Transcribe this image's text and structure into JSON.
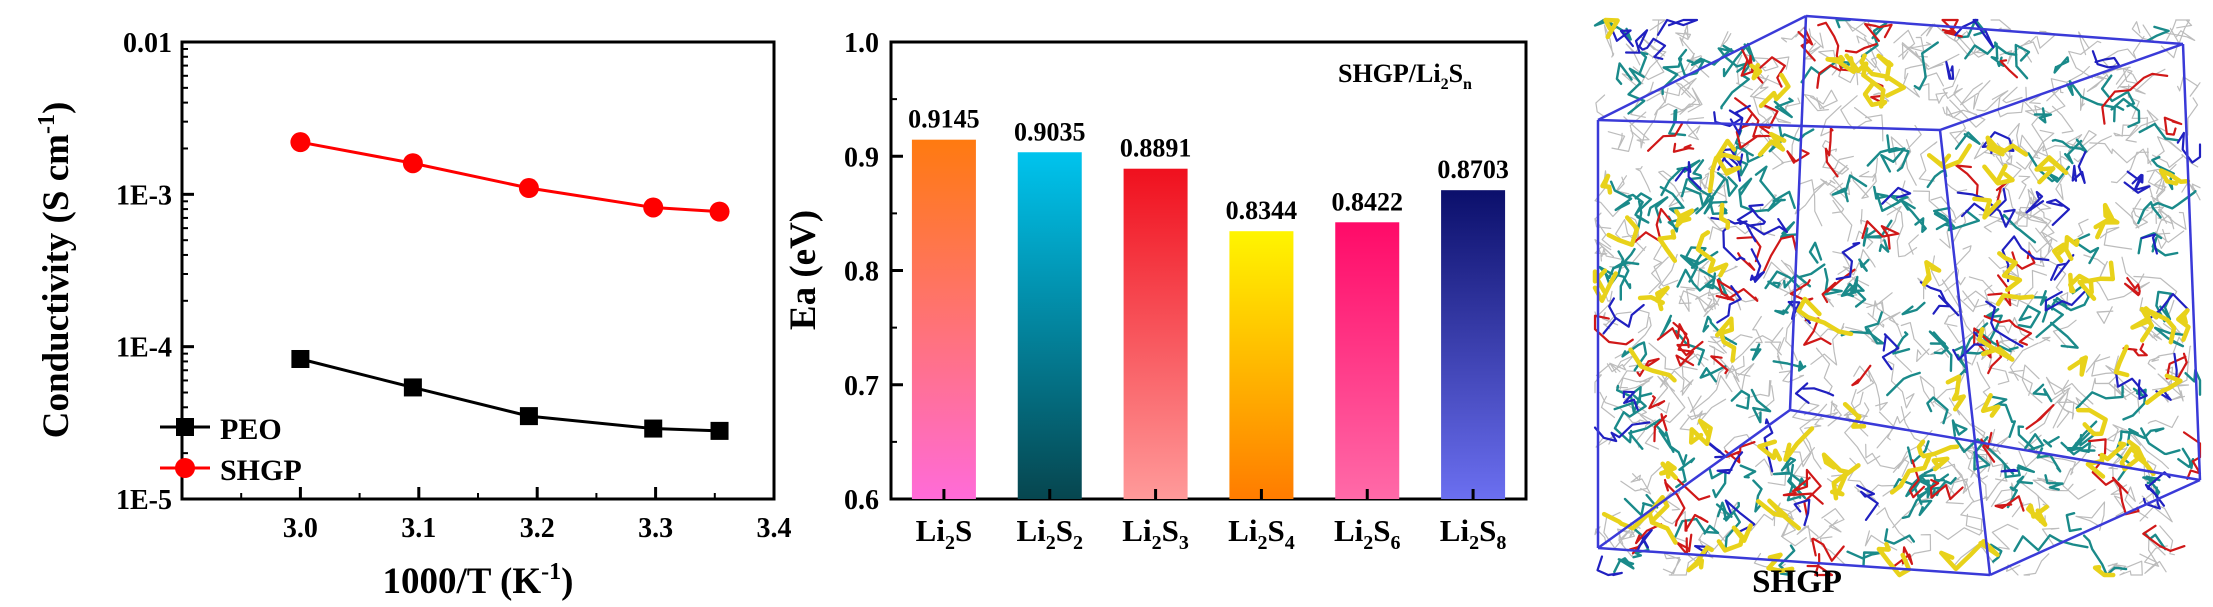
{
  "chart_data": [
    {
      "type": "line",
      "xlabel": "1000/T (K",
      "xlabel_sup": "-1",
      "xlabel_end": ")",
      "ylabel": "Conductivity (S cm",
      "ylabel_sup": "-1",
      "ylabel_end": ")",
      "xlim": [
        2.9,
        3.4
      ],
      "ylim_log10": [
        -5,
        -2
      ],
      "yscale": "log",
      "x_ticks": [
        "3.0",
        "3.1",
        "3.2",
        "3.3",
        "3.4"
      ],
      "y_ticks": [
        "1E-5",
        "1E-4",
        "1E-3",
        "0.01"
      ],
      "legend_position": "bottom-left",
      "series": [
        {
          "name": "PEO",
          "color": "#000000",
          "marker": "square",
          "x": [
            3.0,
            3.095,
            3.193,
            3.298,
            3.354
          ],
          "y": [
            8.3e-05,
            5.4e-05,
            3.5e-05,
            2.9e-05,
            2.8e-05
          ]
        },
        {
          "name": "SHGP",
          "color": "#ff0000",
          "marker": "circle",
          "x": [
            3.0,
            3.095,
            3.193,
            3.298,
            3.354
          ],
          "y": [
            0.0022,
            0.0016,
            0.0011,
            0.00082,
            0.00077
          ]
        }
      ]
    },
    {
      "type": "bar",
      "annotation_prefix": "SHGP/Li",
      "annotation_sub1": "2",
      "annotation_mid": "S",
      "annotation_sub2": "n",
      "ylabel": "Ea (eV)",
      "ylim": [
        0.6,
        1.0
      ],
      "y_ticks": [
        "0.6",
        "0.7",
        "0.8",
        "0.9",
        "1.0"
      ],
      "categories": [
        {
          "pre": "Li",
          "sub": "2",
          "post": "S",
          "sub2": ""
        },
        {
          "pre": "Li",
          "sub": "2",
          "post": "S",
          "sub2": "2"
        },
        {
          "pre": "Li",
          "sub": "2",
          "post": "S",
          "sub2": "3"
        },
        {
          "pre": "Li",
          "sub": "2",
          "post": "S",
          "sub2": "4"
        },
        {
          "pre": "Li",
          "sub": "2",
          "post": "S",
          "sub2": "6"
        },
        {
          "pre": "Li",
          "sub": "2",
          "post": "S",
          "sub2": "8"
        }
      ],
      "values": [
        0.9145,
        0.9035,
        0.8891,
        0.8344,
        0.8422,
        0.8703
      ],
      "labels": [
        "0.9145",
        "0.9035",
        "0.8891",
        "0.8344",
        "0.8422",
        "0.8703"
      ],
      "gradients": [
        [
          "#ff7a10",
          "#ff6bd8"
        ],
        [
          "#00c4ee",
          "#06464f"
        ],
        [
          "#f0101e",
          "#ff9a9a"
        ],
        [
          "#fff500",
          "#ff7c00"
        ],
        [
          "#ff0a68",
          "#ff6aa8"
        ],
        [
          "#0b0f6b",
          "#6b6ff0"
        ]
      ]
    }
  ],
  "model_caption": "SHGP",
  "model_colors": {
    "frame": "#3a3ad8",
    "gray": "#bcbcbc",
    "teal": "#1a8a8a",
    "red": "#d01818",
    "yellow": "#e8d21a",
    "blue": "#2020c0"
  }
}
